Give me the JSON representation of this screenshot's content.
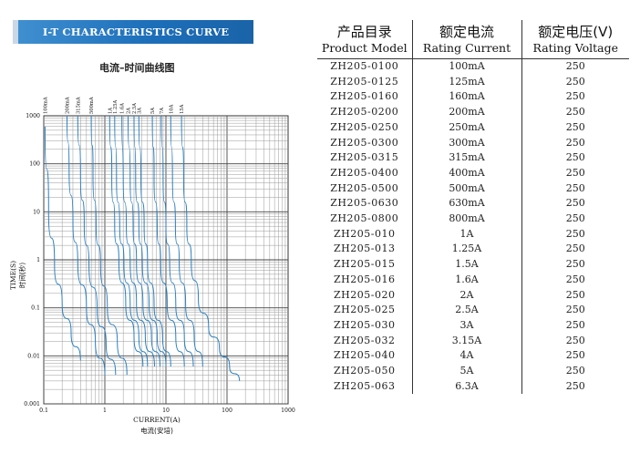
{
  "header": {
    "banner": "I-T CHARACTERISTICS CURVE",
    "chart_title": "电流–时间曲线图"
  },
  "chart_data": {
    "type": "line",
    "xlabel": "CURRENT(A)",
    "xlabel_cn": "电流(安培)",
    "ylabel": "TIME(S)",
    "ylabel_cn": "时间(秒)",
    "x_scale": "log",
    "y_scale": "log",
    "xlim": [
      0.1,
      1000
    ],
    "ylim": [
      0.001,
      1000
    ],
    "x_ticks": [
      "0.1",
      "1",
      "10",
      "100",
      "1000"
    ],
    "y_ticks": [
      "1000",
      "100",
      "10",
      "1",
      "0.1",
      "0.01",
      "0.001"
    ],
    "grid": true,
    "curve_color": "#2a7fc0",
    "series": [
      {
        "name": "100mA",
        "x": [
          0.105,
          0.12,
          0.15,
          0.2,
          0.28,
          0.4
        ],
        "y": [
          600,
          10,
          0.8,
          0.12,
          0.03,
          0.008
        ]
      },
      {
        "name": "200mA",
        "x": [
          0.24,
          0.26,
          0.3,
          0.36,
          0.5,
          0.7,
          1.0
        ],
        "y": [
          1000,
          80,
          6,
          0.9,
          0.1,
          0.02,
          0.004
        ]
      },
      {
        "name": "315mA",
        "x": [
          0.36,
          0.4,
          0.46,
          0.55,
          0.75,
          1.05,
          1.5
        ],
        "y": [
          1000,
          60,
          5,
          0.8,
          0.09,
          0.018,
          0.004
        ]
      },
      {
        "name": "500mA",
        "x": [
          0.6,
          0.64,
          0.72,
          0.85,
          1.1,
          1.6,
          2.3
        ],
        "y": [
          1000,
          60,
          5,
          0.8,
          0.1,
          0.02,
          0.004
        ]
      },
      {
        "name": "1A",
        "x": [
          1.2,
          1.3,
          1.45,
          1.7,
          2.2,
          3.0,
          4.2
        ],
        "y": [
          1000,
          50,
          5,
          0.9,
          0.12,
          0.025,
          0.006
        ]
      },
      {
        "name": "1.25A",
        "x": [
          1.45,
          1.55,
          1.75,
          2.05,
          2.6,
          3.6,
          5.0
        ],
        "y": [
          1000,
          50,
          5,
          0.9,
          0.12,
          0.025,
          0.006
        ]
      },
      {
        "name": "1.6A",
        "x": [
          1.9,
          2.0,
          2.25,
          2.6,
          3.3,
          4.6,
          6.5
        ],
        "y": [
          1000,
          50,
          5,
          0.9,
          0.12,
          0.025,
          0.006
        ]
      },
      {
        "name": "2A",
        "x": [
          2.4,
          2.6,
          2.9,
          3.3,
          4.2,
          5.8,
          8.0
        ],
        "y": [
          1000,
          50,
          5,
          0.9,
          0.12,
          0.025,
          0.006
        ]
      },
      {
        "name": "2.5A",
        "x": [
          3.0,
          3.2,
          3.6,
          4.1,
          5.3,
          7.2,
          10.0
        ],
        "y": [
          1000,
          50,
          5,
          0.9,
          0.12,
          0.025,
          0.006
        ]
      },
      {
        "name": "3A",
        "x": [
          3.6,
          3.9,
          4.4,
          5.0,
          6.4,
          8.8,
          12.0
        ],
        "y": [
          1000,
          50,
          5,
          0.9,
          0.12,
          0.025,
          0.006
        ]
      },
      {
        "name": "5A",
        "x": [
          6.0,
          6.4,
          7.2,
          8.2,
          10.5,
          14.5,
          20.0
        ],
        "y": [
          1000,
          50,
          5,
          0.9,
          0.12,
          0.025,
          0.006
        ]
      },
      {
        "name": "7A",
        "x": [
          8.4,
          9.0,
          10.0,
          11.5,
          14.5,
          20.0,
          28.0
        ],
        "y": [
          1000,
          50,
          5,
          0.9,
          0.12,
          0.025,
          0.006
        ]
      },
      {
        "name": "10A",
        "x": [
          12.0,
          12.8,
          14.3,
          16.5,
          21.0,
          29.0,
          40.0
        ],
        "y": [
          1000,
          50,
          5,
          0.9,
          0.12,
          0.025,
          0.006
        ]
      },
      {
        "name": "15A",
        "x": [
          18.0,
          19.5,
          22.0,
          26.0,
          34.0,
          50.0,
          75.0,
          110.0,
          160.0
        ],
        "y": [
          1000,
          50,
          5,
          0.9,
          0.15,
          0.04,
          0.015,
          0.006,
          0.003
        ]
      }
    ]
  },
  "table": {
    "headers": [
      {
        "cn": "产品目录",
        "en": "Product Model"
      },
      {
        "cn": "额定电流",
        "en": "Rating Current"
      },
      {
        "cn": "额定电压(V)",
        "en": "Rating Voltage"
      }
    ],
    "rows": [
      [
        "ZH205-0100",
        "100mA",
        "250"
      ],
      [
        "ZH205-0125",
        "125mA",
        "250"
      ],
      [
        "ZH205-0160",
        "160mA",
        "250"
      ],
      [
        "ZH205-0200",
        "200mA",
        "250"
      ],
      [
        "ZH205-0250",
        "250mA",
        "250"
      ],
      [
        "ZH205-0300",
        "300mA",
        "250"
      ],
      [
        "ZH205-0315",
        "315mA",
        "250"
      ],
      [
        "ZH205-0400",
        "400mA",
        "250"
      ],
      [
        "ZH205-0500",
        "500mA",
        "250"
      ],
      [
        "ZH205-0630",
        "630mA",
        "250"
      ],
      [
        "ZH205-0800",
        "800mA",
        "250"
      ],
      [
        "ZH205-010",
        "1A",
        "250"
      ],
      [
        "ZH205-013",
        "1.25A",
        "250"
      ],
      [
        "ZH205-015",
        "1.5A",
        "250"
      ],
      [
        "ZH205-016",
        "1.6A",
        "250"
      ],
      [
        "ZH205-020",
        "2A",
        "250"
      ],
      [
        "ZH205-025",
        "2.5A",
        "250"
      ],
      [
        "ZH205-030",
        "3A",
        "250"
      ],
      [
        "ZH205-032",
        "3.15A",
        "250"
      ],
      [
        "ZH205-040",
        "4A",
        "250"
      ],
      [
        "ZH205-050",
        "5A",
        "250"
      ],
      [
        "ZH205-063",
        "6.3A",
        "250"
      ]
    ]
  }
}
